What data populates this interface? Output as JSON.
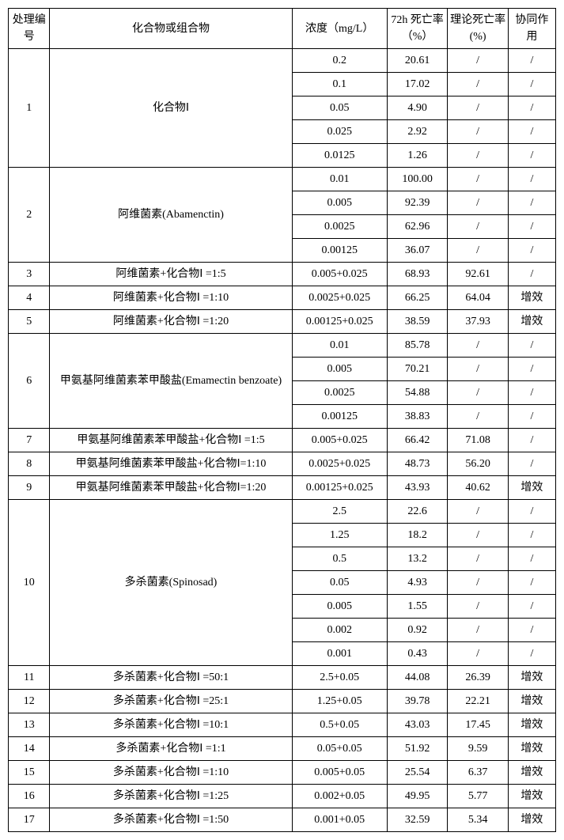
{
  "headers": {
    "id": "处理编号",
    "compound": "化合物或组合物",
    "concentration": "浓度（mg/L）",
    "mortality72h": "72h 死亡率（%）",
    "theoretical": "理论死亡率(%)",
    "synergy": "协同作用"
  },
  "labels": {
    "slash": "/",
    "synergyWord": "增效"
  },
  "groups": [
    {
      "id": "1",
      "compound": "化合物Ⅰ",
      "rows": [
        {
          "conc": "0.2",
          "m72": "20.61",
          "theo": "/",
          "syn": "/"
        },
        {
          "conc": "0.1",
          "m72": "17.02",
          "theo": "/",
          "syn": "/"
        },
        {
          "conc": "0.05",
          "m72": "4.90",
          "theo": "/",
          "syn": "/"
        },
        {
          "conc": "0.025",
          "m72": "2.92",
          "theo": "/",
          "syn": "/"
        },
        {
          "conc": "0.0125",
          "m72": "1.26",
          "theo": "/",
          "syn": "/"
        }
      ]
    },
    {
      "id": "2",
      "compound": "阿维菌素(Abamenctin)",
      "rows": [
        {
          "conc": "0.01",
          "m72": "100.00",
          "theo": "/",
          "syn": "/"
        },
        {
          "conc": "0.005",
          "m72": "92.39",
          "theo": "/",
          "syn": "/"
        },
        {
          "conc": "0.0025",
          "m72": "62.96",
          "theo": "/",
          "syn": "/"
        },
        {
          "conc": "0.00125",
          "m72": "36.07",
          "theo": "/",
          "syn": "/"
        }
      ]
    },
    {
      "id": "3",
      "compound": "阿维菌素+化合物Ⅰ =1:5",
      "rows": [
        {
          "conc": "0.005+0.025",
          "m72": "68.93",
          "theo": "92.61",
          "syn": "/"
        }
      ]
    },
    {
      "id": "4",
      "compound": "阿维菌素+化合物Ⅰ =1:10",
      "rows": [
        {
          "conc": "0.0025+0.025",
          "m72": "66.25",
          "theo": "64.04",
          "syn": "增效"
        }
      ]
    },
    {
      "id": "5",
      "compound": "阿维菌素+化合物Ⅰ =1:20",
      "rows": [
        {
          "conc": "0.00125+0.025",
          "m72": "38.59",
          "theo": "37.93",
          "syn": "增效"
        }
      ]
    },
    {
      "id": "6",
      "compound": "甲氨基阿维菌素苯甲酸盐(Emamectin benzoate)",
      "rows": [
        {
          "conc": "0.01",
          "m72": "85.78",
          "theo": "/",
          "syn": "/"
        },
        {
          "conc": "0.005",
          "m72": "70.21",
          "theo": "/",
          "syn": "/"
        },
        {
          "conc": "0.0025",
          "m72": "54.88",
          "theo": "/",
          "syn": "/"
        },
        {
          "conc": "0.00125",
          "m72": "38.83",
          "theo": "/",
          "syn": "/"
        }
      ]
    },
    {
      "id": "7",
      "compound": "甲氨基阿维菌素苯甲酸盐+化合物Ⅰ =1:5",
      "rows": [
        {
          "conc": "0.005+0.025",
          "m72": "66.42",
          "theo": "71.08",
          "syn": "/"
        }
      ]
    },
    {
      "id": "8",
      "compound": "甲氨基阿维菌素苯甲酸盐+化合物Ⅰ=1:10",
      "rows": [
        {
          "conc": "0.0025+0.025",
          "m72": "48.73",
          "theo": "56.20",
          "syn": "/"
        }
      ]
    },
    {
      "id": "9",
      "compound": "甲氨基阿维菌素苯甲酸盐+化合物Ⅰ=1:20",
      "rows": [
        {
          "conc": "0.00125+0.025",
          "m72": "43.93",
          "theo": "40.62",
          "syn": "增效"
        }
      ]
    },
    {
      "id": "10",
      "compound": "多杀菌素(Spinosad)",
      "rows": [
        {
          "conc": "2.5",
          "m72": "22.6",
          "theo": "/",
          "syn": "/"
        },
        {
          "conc": "1.25",
          "m72": "18.2",
          "theo": "/",
          "syn": "/"
        },
        {
          "conc": "0.5",
          "m72": "13.2",
          "theo": "/",
          "syn": "/"
        },
        {
          "conc": "0.05",
          "m72": "4.93",
          "theo": "/",
          "syn": "/"
        },
        {
          "conc": "0.005",
          "m72": "1.55",
          "theo": "/",
          "syn": "/"
        },
        {
          "conc": "0.002",
          "m72": "0.92",
          "theo": "/",
          "syn": "/"
        },
        {
          "conc": "0.001",
          "m72": "0.43",
          "theo": "/",
          "syn": "/"
        }
      ]
    },
    {
      "id": "11",
      "compound": "多杀菌素+化合物Ⅰ =50:1",
      "rows": [
        {
          "conc": "2.5+0.05",
          "m72": "44.08",
          "theo": "26.39",
          "syn": "增效"
        }
      ]
    },
    {
      "id": "12",
      "compound": "多杀菌素+化合物Ⅰ =25:1",
      "rows": [
        {
          "conc": "1.25+0.05",
          "m72": "39.78",
          "theo": "22.21",
          "syn": "增效"
        }
      ]
    },
    {
      "id": "13",
      "compound": "多杀菌素+化合物Ⅰ =10:1",
      "rows": [
        {
          "conc": "0.5+0.05",
          "m72": "43.03",
          "theo": "17.45",
          "syn": "增效"
        }
      ]
    },
    {
      "id": "14",
      "compound": "多杀菌素+化合物Ⅰ =1:1",
      "rows": [
        {
          "conc": "0.05+0.05",
          "m72": "51.92",
          "theo": "9.59",
          "syn": "增效"
        }
      ]
    },
    {
      "id": "15",
      "compound": "多杀菌素+化合物Ⅰ =1:10",
      "rows": [
        {
          "conc": "0.005+0.05",
          "m72": "25.54",
          "theo": "6.37",
          "syn": "增效"
        }
      ]
    },
    {
      "id": "16",
      "compound": "多杀菌素+化合物Ⅰ =1:25",
      "rows": [
        {
          "conc": "0.002+0.05",
          "m72": "49.95",
          "theo": "5.77",
          "syn": "增效"
        }
      ]
    },
    {
      "id": "17",
      "compound": "多杀菌素+化合物Ⅰ =1:50",
      "rows": [
        {
          "conc": "0.001+0.05",
          "m72": "32.59",
          "theo": "5.34",
          "syn": "增效"
        }
      ]
    }
  ]
}
